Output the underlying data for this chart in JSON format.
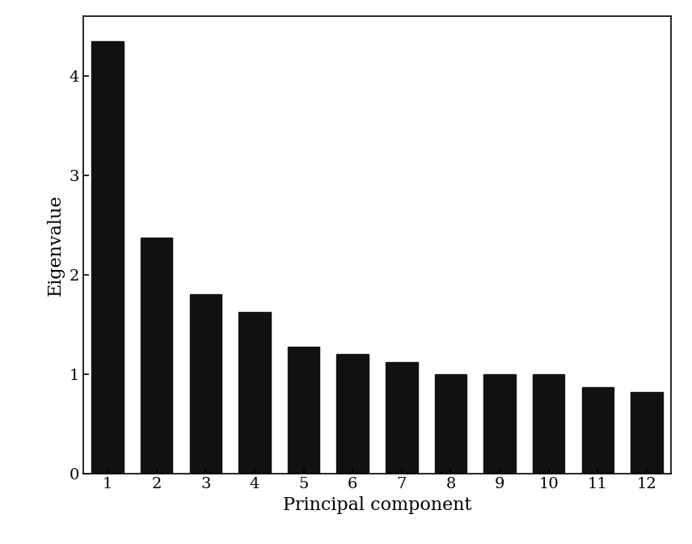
{
  "categories": [
    1,
    2,
    3,
    4,
    5,
    6,
    7,
    8,
    9,
    10,
    11,
    12
  ],
  "values": [
    4.35,
    2.37,
    1.8,
    1.62,
    1.27,
    1.2,
    1.12,
    1.0,
    1.0,
    1.0,
    0.87,
    0.82
  ],
  "bar_color": "#111111",
  "xlabel": "Principal component",
  "ylabel": "Eigenvalue",
  "xlim": [
    0.5,
    12.5
  ],
  "ylim": [
    0,
    4.6
  ],
  "yticks": [
    0,
    1,
    2,
    3,
    4
  ],
  "xticks": [
    1,
    2,
    3,
    4,
    5,
    6,
    7,
    8,
    9,
    10,
    11,
    12
  ],
  "xlabel_fontsize": 16,
  "ylabel_fontsize": 16,
  "tick_fontsize": 14,
  "bar_width": 0.65,
  "background_color": "#ffffff",
  "figure_width": 8.56,
  "figure_height": 6.73
}
